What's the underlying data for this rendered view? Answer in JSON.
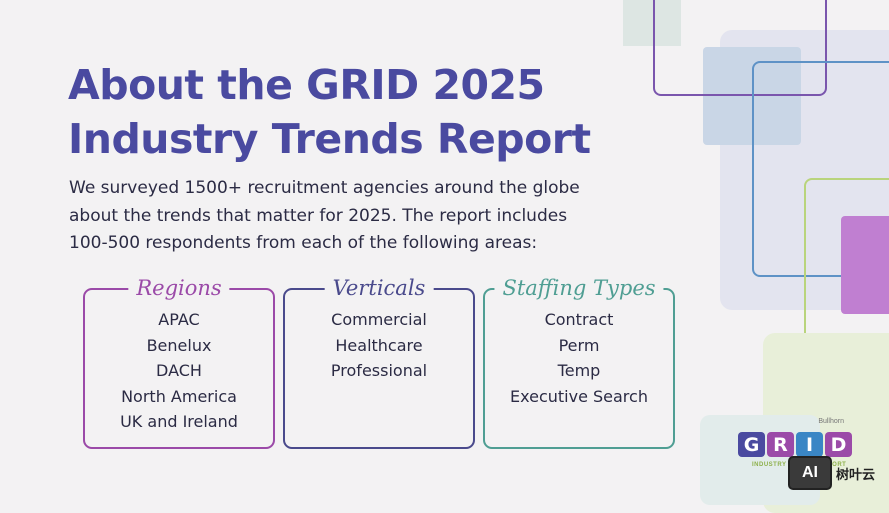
{
  "title": {
    "line1": "About the GRID 2025",
    "line2": "Industry Trends Report"
  },
  "intro": {
    "line1": "We surveyed 1500+ recruitment agencies around the globe",
    "line2": "about the trends that matter for 2025. The report includes",
    "line3": "100-500 respondents from each of the following areas:"
  },
  "categories": [
    {
      "heading": "Regions",
      "color": "#9b4aa8",
      "items": [
        "APAC",
        "Benelux",
        "DACH",
        "North America",
        "UK and Ireland"
      ]
    },
    {
      "heading": "Verticals",
      "color": "#4a4a8c",
      "items": [
        "Commercial",
        "Healthcare",
        "Professional"
      ]
    },
    {
      "heading": "Staffing Types",
      "color": "#4f9e93",
      "items": [
        "Contract",
        "Perm",
        "Temp",
        "Executive Search"
      ]
    }
  ],
  "logo": {
    "brand": "Bullhorn",
    "letters": [
      "G",
      "R",
      "I",
      "D"
    ],
    "letter_colors": [
      "#4a4aa0",
      "#9b4aa8",
      "#3a86c5",
      "#9b4aa8"
    ],
    "subtitle": "INDUSTRY TRENDS REPORT"
  },
  "watermark": {
    "badge": "AI",
    "text": "树叶云"
  }
}
